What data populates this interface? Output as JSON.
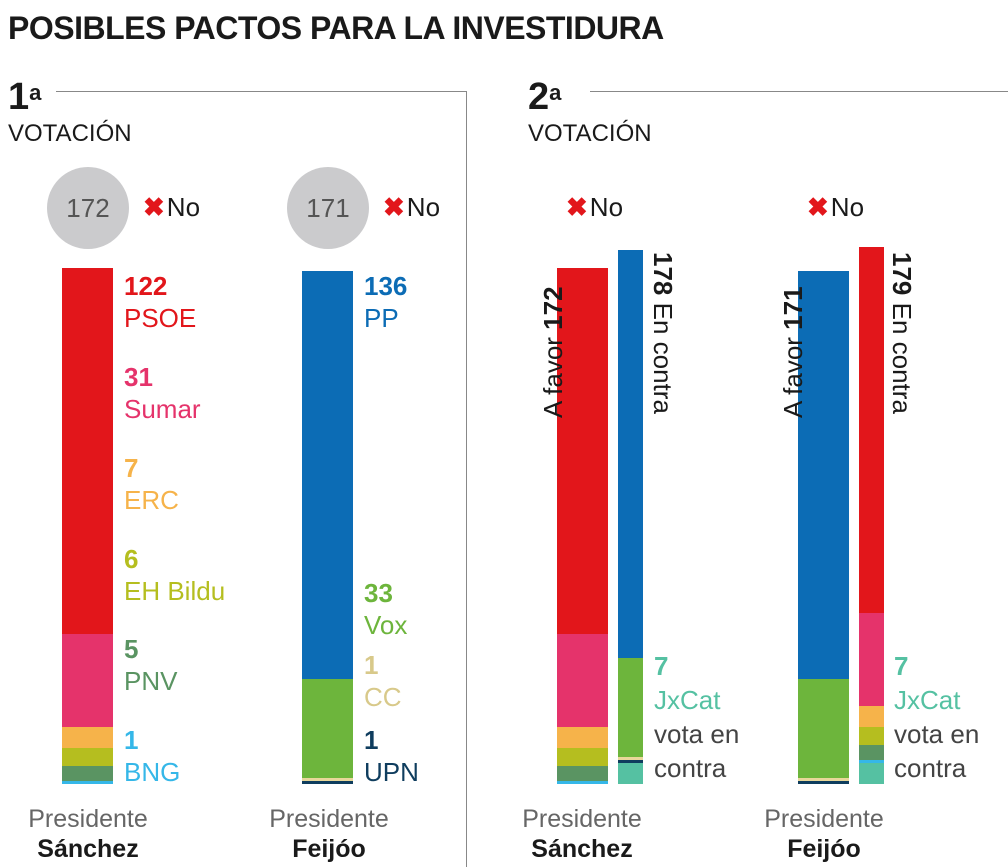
{
  "title": "POSIBLES PACTOS PARA LA INVESTIDURA",
  "colors": {
    "PSOE": "#e2161b",
    "Sumar": "#e5336b",
    "ERC": "#f6b34a",
    "EH Bildu": "#b5be1f",
    "PNV": "#5a9462",
    "BNG": "#35b7e8",
    "PP": "#0c6cb5",
    "Vox": "#6db53c",
    "CC": "#e8d79a",
    "UPN": "#0f3d5e",
    "JxCat": "#55c1a2"
  },
  "chart_data": [
    {
      "type": "bar",
      "panel": {
        "number": "1",
        "sup": "a",
        "label": "VOTACIÓN"
      },
      "bars": [
        {
          "name": "Presidente Sánchez",
          "foot_label": "Presidente",
          "foot_name": "Sánchez",
          "total": 172,
          "result": "No",
          "series": [
            {
              "name": "PSOE",
              "value": 122
            },
            {
              "name": "Sumar",
              "value": 31
            },
            {
              "name": "ERC",
              "value": 7
            },
            {
              "name": "EH Bildu",
              "value": 6
            },
            {
              "name": "PNV",
              "value": 5
            },
            {
              "name": "BNG",
              "value": 1
            }
          ]
        },
        {
          "name": "Presidente Feijóo",
          "foot_label": "Presidente",
          "foot_name": "Feijóo",
          "total": 171,
          "result": "No",
          "series": [
            {
              "name": "PP",
              "value": 136
            },
            {
              "name": "Vox",
              "value": 33
            },
            {
              "name": "CC",
              "value": 1
            },
            {
              "name": "UPN",
              "value": 1
            }
          ]
        }
      ]
    },
    {
      "type": "bar",
      "panel": {
        "number": "2",
        "sup": "a",
        "label": "VOTACIÓN"
      },
      "pairs": [
        {
          "foot_label": "Presidente",
          "foot_name": "Sánchez",
          "result": "No",
          "favor": {
            "label": "A favor",
            "value": 172,
            "series": [
              {
                "name": "PSOE",
                "value": 122
              },
              {
                "name": "Sumar",
                "value": 31
              },
              {
                "name": "ERC",
                "value": 7
              },
              {
                "name": "EH Bildu",
                "value": 6
              },
              {
                "name": "PNV",
                "value": 5
              },
              {
                "name": "BNG",
                "value": 1
              }
            ]
          },
          "against": {
            "label": "En contra",
            "value": 178,
            "series": [
              {
                "name": "PP",
                "value": 136
              },
              {
                "name": "Vox",
                "value": 33
              },
              {
                "name": "CC",
                "value": 1
              },
              {
                "name": "UPN",
                "value": 1
              },
              {
                "name": "JxCat",
                "value": 7
              }
            ]
          },
          "note": {
            "value": "7",
            "line1": "JxCat",
            "line2": "vota en",
            "line3": "contra"
          }
        },
        {
          "foot_label": "Presidente",
          "foot_name": "Feijóo",
          "result": "No",
          "favor": {
            "label": "A favor",
            "value": 171,
            "series": [
              {
                "name": "PP",
                "value": 136
              },
              {
                "name": "Vox",
                "value": 33
              },
              {
                "name": "CC",
                "value": 1
              },
              {
                "name": "UPN",
                "value": 1
              }
            ]
          },
          "against": {
            "label": "En contra",
            "value": 179,
            "series": [
              {
                "name": "PSOE",
                "value": 122
              },
              {
                "name": "Sumar",
                "value": 31
              },
              {
                "name": "ERC",
                "value": 7
              },
              {
                "name": "EH Bildu",
                "value": 6
              },
              {
                "name": "PNV",
                "value": 5
              },
              {
                "name": "BNG",
                "value": 1
              },
              {
                "name": "JxCat",
                "value": 7
              }
            ]
          },
          "note": {
            "value": "7",
            "line1": "JxCat",
            "line2": "vota en",
            "line3": "contra"
          }
        }
      ]
    }
  ]
}
